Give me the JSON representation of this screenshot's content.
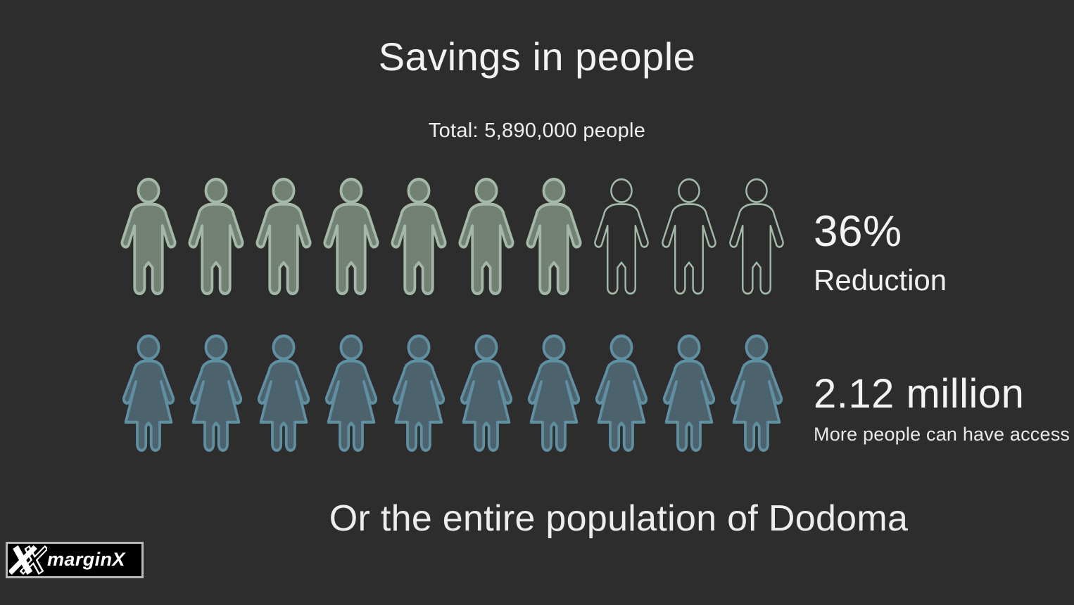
{
  "background_color": "#2d2d2d",
  "title": "Savings in people",
  "subtitle": "Total: 5,890,000 people",
  "rows": [
    {
      "id": "reduction",
      "icon": "male-person-icon",
      "icons_total": 10,
      "icons_filled": 7,
      "fill_color": "#728075",
      "stroke_color": "#a3b8a7",
      "stat_value": "36%",
      "stat_label": "Reduction"
    },
    {
      "id": "access",
      "icon": "female-person-icon",
      "icons_total": 10,
      "icons_filled": 10,
      "fill_color": "#4c636e",
      "stroke_color": "#5f8fa0",
      "stat_value": "2.12 million",
      "stat_label": "More people can have access"
    }
  ],
  "caption": "Or the entire population of Dodoma",
  "logo": {
    "brand": "marginX",
    "mark": "double-x",
    "mark_color": "#ffffff",
    "box_background": "#000000",
    "box_border": "#b8b8b8"
  },
  "chart_data": {
    "type": "pictograph",
    "title": "Savings in people",
    "subtitle": "Total: 5,890,000 people",
    "total_people": 5890000,
    "series": [
      {
        "name": "Reduction",
        "value_label": "36%",
        "value": 0.36,
        "icon": "male person",
        "icons_total": 10,
        "icons_filled": 7,
        "fill_color": "#728075"
      },
      {
        "name": "More people can have access",
        "value_label": "2.12 million",
        "value": 2120000,
        "icon": "female person",
        "icons_total": 10,
        "icons_filled": 10,
        "fill_color": "#4c636e"
      }
    ],
    "caption": "Or the entire population of Dodoma",
    "legend": "none",
    "grid": false
  }
}
